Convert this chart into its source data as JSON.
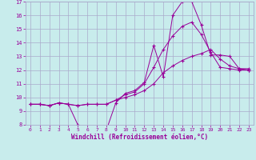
{
  "xlabel": "Windchill (Refroidissement éolien,°C)",
  "bg_color": "#c8ecec",
  "line_color": "#990099",
  "grid_color": "#aaaacc",
  "spine_color": "#aaaacc",
  "xlim": [
    -0.5,
    23.5
  ],
  "ylim": [
    8,
    17
  ],
  "xticks": [
    0,
    1,
    2,
    3,
    4,
    5,
    6,
    7,
    8,
    9,
    10,
    11,
    12,
    13,
    14,
    15,
    16,
    17,
    18,
    19,
    20,
    21,
    22,
    23
  ],
  "yticks": [
    8,
    9,
    10,
    11,
    12,
    13,
    14,
    15,
    16,
    17
  ],
  "line1_x": [
    0,
    1,
    2,
    3,
    4,
    5,
    6,
    7,
    8,
    9,
    10,
    11,
    12,
    13,
    14,
    15,
    16,
    17,
    18,
    19,
    20,
    21,
    22,
    23
  ],
  "line1_y": [
    9.5,
    9.5,
    9.4,
    9.6,
    9.5,
    8.0,
    7.8,
    7.75,
    7.6,
    9.6,
    10.3,
    10.5,
    11.1,
    13.8,
    11.5,
    16.0,
    17.0,
    17.0,
    15.3,
    13.1,
    13.1,
    13.0,
    12.1,
    12.0
  ],
  "line2_x": [
    0,
    1,
    2,
    3,
    4,
    5,
    6,
    7,
    8,
    9,
    10,
    11,
    12,
    13,
    14,
    15,
    16,
    17,
    18,
    19,
    20,
    21,
    22,
    23
  ],
  "line2_y": [
    9.5,
    9.5,
    9.4,
    9.6,
    9.5,
    9.4,
    9.5,
    9.5,
    9.5,
    9.8,
    10.2,
    10.4,
    11.0,
    12.2,
    13.5,
    14.5,
    15.2,
    15.5,
    14.6,
    13.3,
    12.2,
    12.1,
    12.0,
    12.0
  ],
  "line3_x": [
    0,
    1,
    2,
    3,
    4,
    5,
    6,
    7,
    8,
    9,
    10,
    11,
    12,
    13,
    14,
    15,
    16,
    17,
    18,
    19,
    20,
    21,
    22,
    23
  ],
  "line3_y": [
    9.5,
    9.5,
    9.4,
    9.6,
    9.5,
    9.4,
    9.5,
    9.5,
    9.5,
    9.8,
    10.0,
    10.2,
    10.5,
    11.0,
    11.8,
    12.3,
    12.7,
    13.0,
    13.2,
    13.5,
    12.8,
    12.3,
    12.1,
    12.1
  ]
}
